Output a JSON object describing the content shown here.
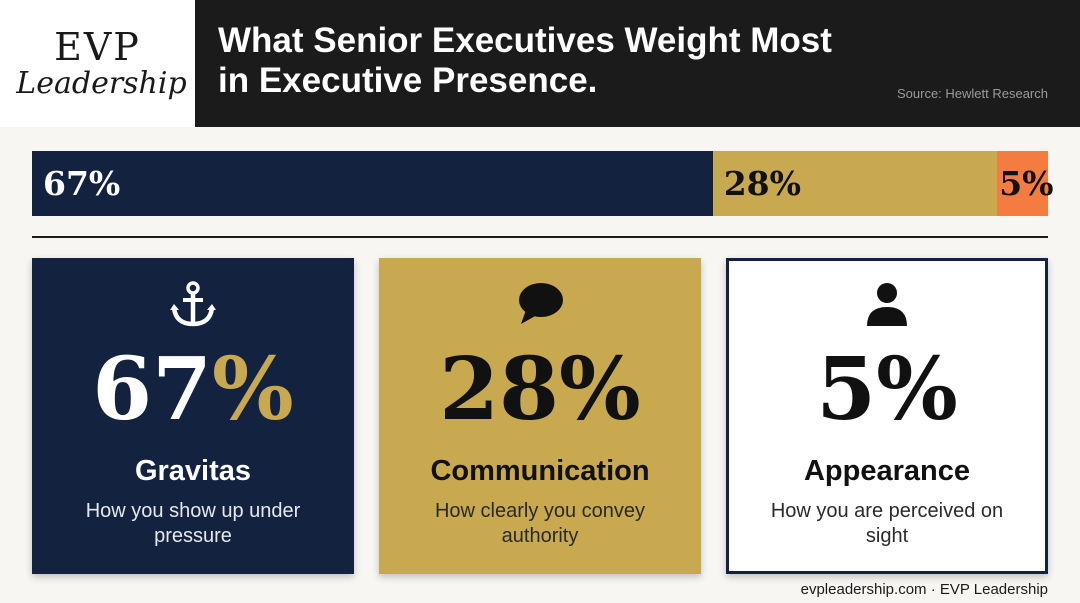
{
  "brand": {
    "logo_line1": "EVP",
    "logo_line2": "Leadership"
  },
  "header": {
    "title": "What Senior Executives Weight Most in Executive Presence.",
    "source": "Source: Hewlett Research"
  },
  "colors": {
    "navy": "#13223f",
    "gold": "#c9a94f",
    "orange": "#f57c40",
    "header_bg": "#1b1b1b"
  },
  "chart_data": {
    "type": "bar",
    "orientation": "horizontal-stacked",
    "categories": [
      "Gravitas",
      "Communication",
      "Appearance"
    ],
    "values": [
      67,
      28,
      5
    ],
    "labels": [
      "67%",
      "28%",
      "5%"
    ],
    "colors": [
      "#13223f",
      "#c9a94f",
      "#f57c40"
    ]
  },
  "cards": [
    {
      "icon": "anchor-icon",
      "pct_num": "67",
      "pct_sym": "%",
      "name": "Gravitas",
      "desc": "How you show up under pressure"
    },
    {
      "icon": "speech-bubble-icon",
      "pct_num": "28",
      "pct_sym": "%",
      "name": "Communication",
      "desc": "How clearly you convey authority"
    },
    {
      "icon": "person-icon",
      "pct_num": "5",
      "pct_sym": "%",
      "name": "Appearance",
      "desc": "How you are perceived on sight"
    }
  ],
  "footer": "evpleadership.com · EVP Leadership"
}
